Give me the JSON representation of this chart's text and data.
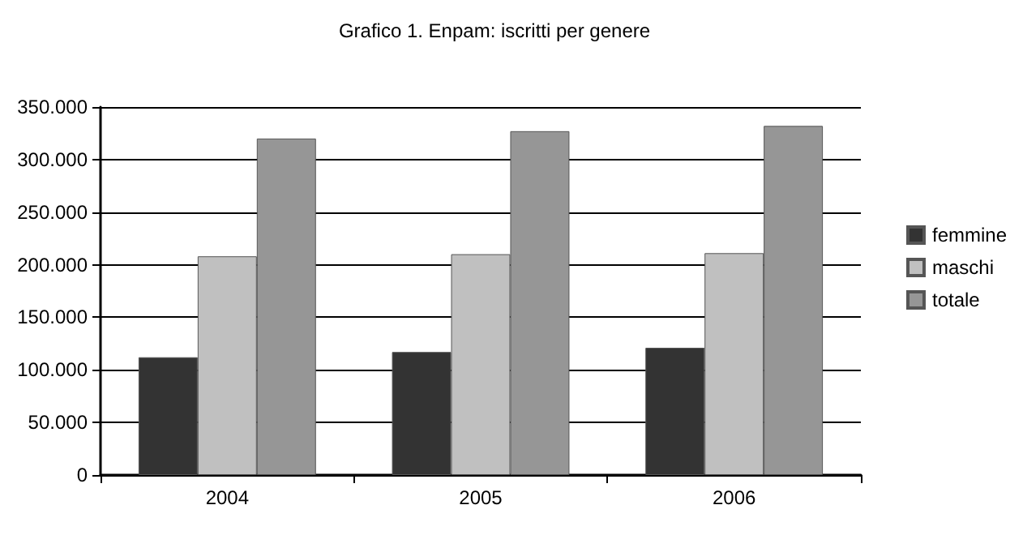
{
  "chart_data": {
    "type": "bar",
    "title": "Grafico 1. Enpam: iscritti per genere",
    "categories": [
      "2004",
      "2005",
      "2006"
    ],
    "series": [
      {
        "name": "femmine",
        "color": "#333333",
        "values": [
          112000,
          117000,
          121000
        ]
      },
      {
        "name": "maschi",
        "color": "#c0c0c0",
        "values": [
          208000,
          210000,
          211000
        ]
      },
      {
        "name": "totale",
        "color": "#969696",
        "values": [
          320000,
          327000,
          332000
        ]
      }
    ],
    "ylim": [
      0,
      350000
    ],
    "yticks": [
      {
        "value": 0,
        "label": "0"
      },
      {
        "value": 50000,
        "label": "50.000"
      },
      {
        "value": 100000,
        "label": "100.000"
      },
      {
        "value": 150000,
        "label": "150.000"
      },
      {
        "value": 200000,
        "label": "200.000"
      },
      {
        "value": 250000,
        "label": "250.000"
      },
      {
        "value": 300000,
        "label": "300.000"
      },
      {
        "value": 350000,
        "label": "350.000"
      }
    ],
    "grid": "y",
    "legend": "right"
  }
}
